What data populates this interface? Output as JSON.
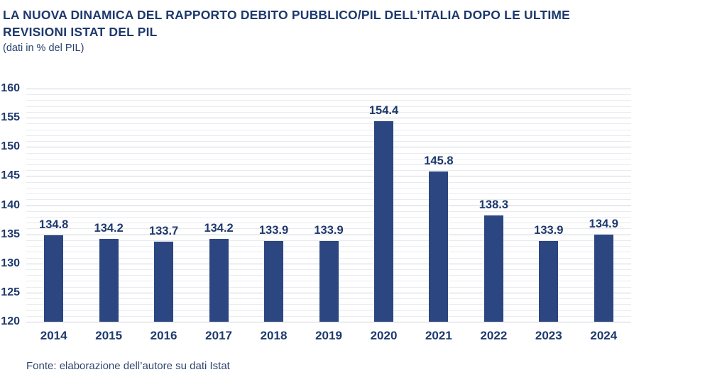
{
  "header": {
    "title_lines": [
      "LA NUOVA DINAMICA DEL RAPPORTO DEBITO PUBBLICO/PIL DELL’ITALIA DOPO LE ULTIME",
      "REVISIONI ISTAT DEL PIL"
    ],
    "subtitle": "(dati in % del PIL)"
  },
  "chart_data": {
    "type": "bar",
    "title": "LA NUOVA DINAMICA DEL RAPPORTO DEBITO PUBBLICO/PIL DELL’ITALIA DOPO LE ULTIME REVISIONI ISTAT DEL PIL",
    "subtitle": "(dati in % del PIL)",
    "categories": [
      "2014",
      "2015",
      "2016",
      "2017",
      "2018",
      "2019",
      "2020",
      "2021",
      "2022",
      "2023",
      "2024"
    ],
    "values": [
      134.8,
      134.2,
      133.7,
      134.2,
      133.9,
      133.9,
      154.4,
      145.8,
      138.3,
      133.9,
      134.9
    ],
    "xlabel": "",
    "ylabel": "",
    "ylim": [
      120,
      160
    ],
    "ytick_step": 5,
    "grid_minor_step": 1,
    "grid": true,
    "legend": false,
    "bar_color": "#2b4681",
    "label_color": "#1e396d",
    "value_label_decimals": 1
  },
  "footer": {
    "source": "Fonte: elaborazione dell’autore su dati Istat"
  }
}
